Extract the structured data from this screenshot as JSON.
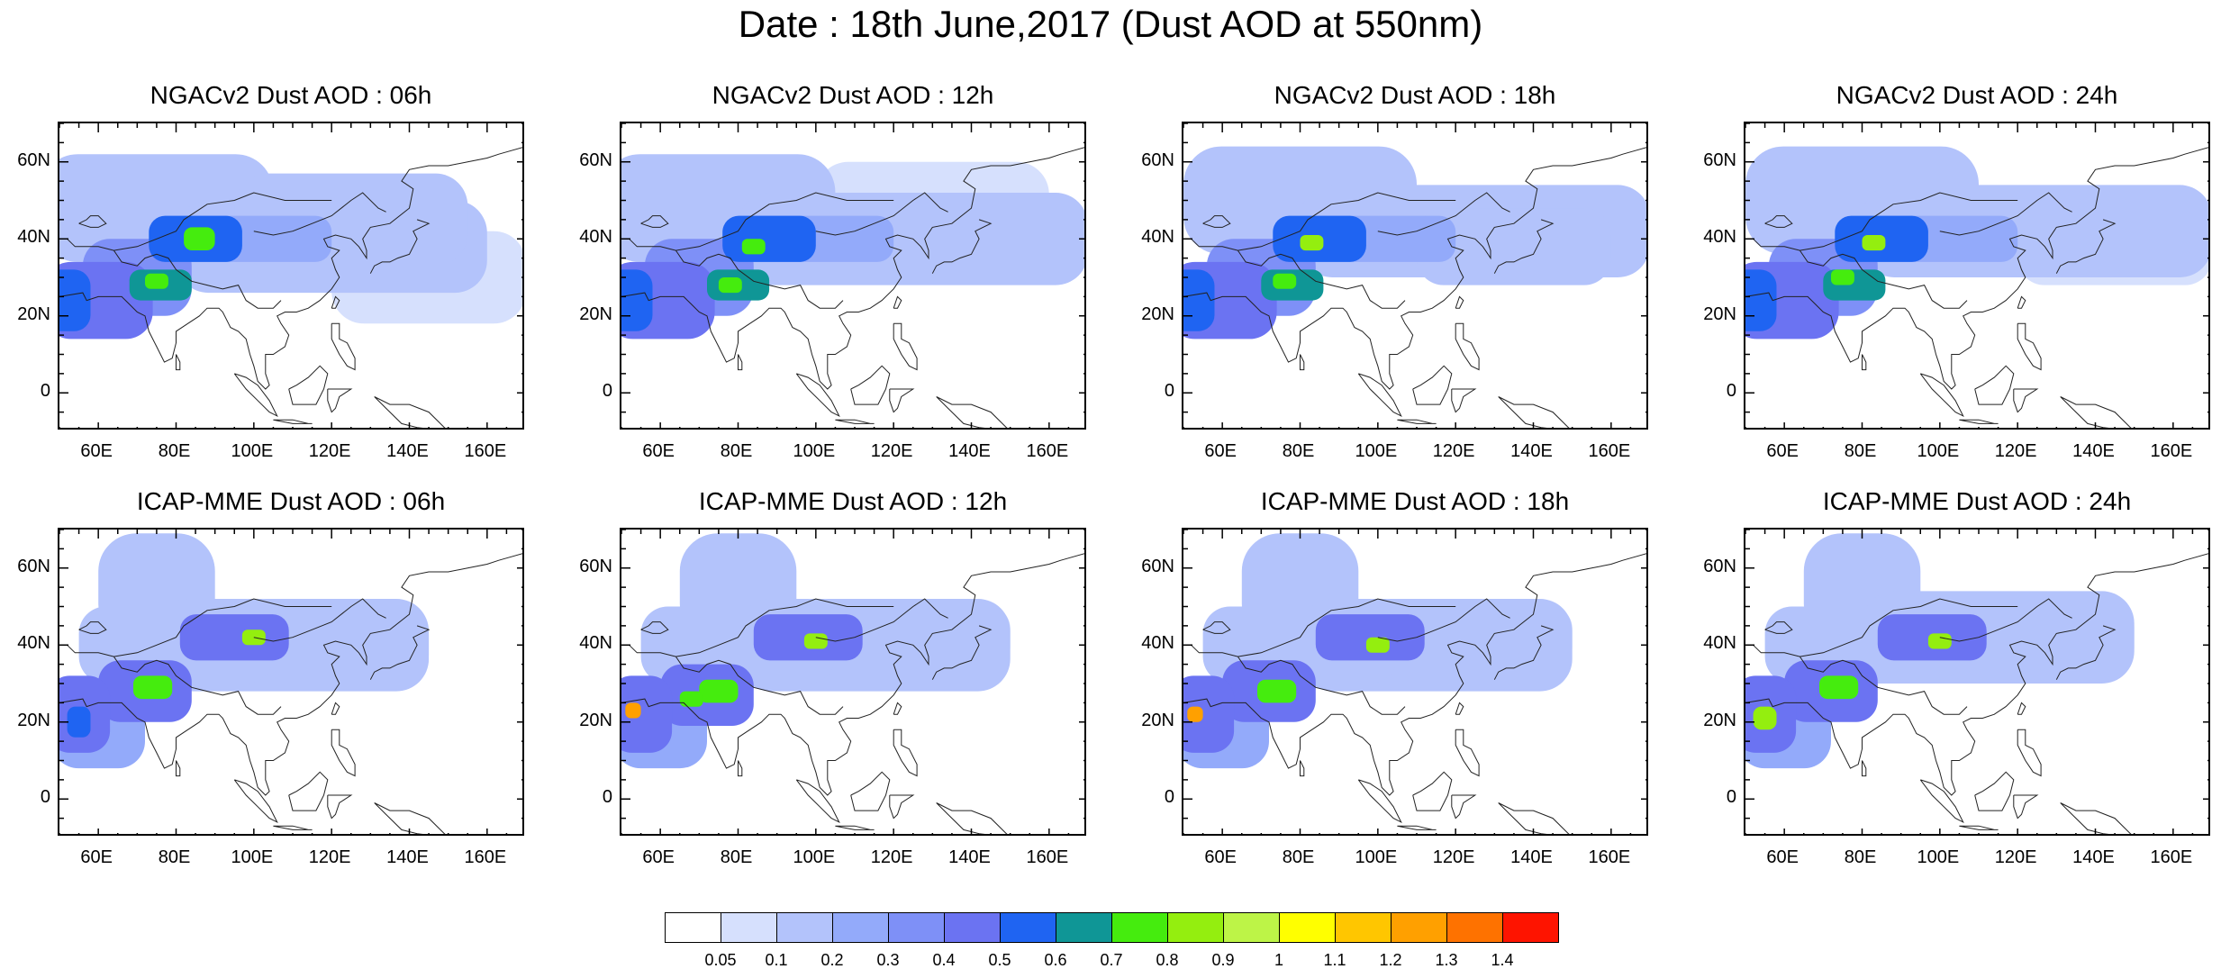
{
  "title": "Date : 18th June,2017 (Dust AOD at 550nm)",
  "axes": {
    "lon_range": [
      50,
      170
    ],
    "lat_range": [
      -10,
      70
    ],
    "x_ticks": [
      "60E",
      "80E",
      "100E",
      "120E",
      "140E",
      "160E"
    ],
    "x_tick_values": [
      60,
      80,
      100,
      120,
      140,
      160
    ],
    "y_ticks": [
      "60N",
      "40N",
      "20N",
      "0"
    ],
    "y_tick_values": [
      60,
      40,
      20,
      0
    ]
  },
  "panels": [
    {
      "title": "NGACv2 Dust AOD : 06h",
      "model": "NGACv2",
      "hour": "06h",
      "blobs": [
        [
          70,
          30,
          14,
          10,
          0.3
        ],
        [
          60,
          24,
          14,
          10,
          0.4
        ],
        [
          52,
          24,
          6,
          8,
          0.5
        ],
        [
          85,
          40,
          12,
          6,
          0.5
        ],
        [
          76,
          28,
          8,
          4,
          0.6
        ],
        [
          86,
          40,
          4,
          3,
          0.75
        ],
        [
          75,
          29,
          3,
          2,
          0.7
        ],
        [
          100,
          40,
          20,
          6,
          0.2
        ],
        [
          75,
          48,
          30,
          14,
          0.1
        ],
        [
          120,
          38,
          40,
          12,
          0.1
        ],
        [
          125,
          45,
          30,
          12,
          0.1
        ],
        [
          145,
          30,
          25,
          12,
          0.07
        ]
      ]
    },
    {
      "title": "NGACv2 Dust AOD : 12h",
      "model": "NGACv2",
      "hour": "12h",
      "blobs": [
        [
          70,
          30,
          14,
          10,
          0.3
        ],
        [
          60,
          24,
          14,
          10,
          0.4
        ],
        [
          52,
          24,
          6,
          8,
          0.5
        ],
        [
          88,
          40,
          12,
          6,
          0.5
        ],
        [
          80,
          28,
          8,
          4,
          0.6
        ],
        [
          84,
          38,
          3,
          2,
          0.75
        ],
        [
          78,
          28,
          3,
          2,
          0.7
        ],
        [
          100,
          40,
          20,
          6,
          0.2
        ],
        [
          75,
          48,
          30,
          14,
          0.1
        ],
        [
          125,
          40,
          45,
          12,
          0.1
        ],
        [
          130,
          48,
          30,
          12,
          0.08
        ]
      ]
    },
    {
      "title": "NGACv2 Dust AOD : 18h",
      "model": "NGACv2",
      "hour": "18h",
      "blobs": [
        [
          70,
          30,
          14,
          10,
          0.3
        ],
        [
          60,
          24,
          14,
          10,
          0.4
        ],
        [
          52,
          24,
          6,
          8,
          0.5
        ],
        [
          85,
          40,
          12,
          6,
          0.5
        ],
        [
          78,
          28,
          8,
          4,
          0.6
        ],
        [
          83,
          39,
          3,
          2,
          0.8
        ],
        [
          76,
          29,
          3,
          2,
          0.7
        ],
        [
          100,
          40,
          20,
          6,
          0.2
        ],
        [
          80,
          50,
          30,
          14,
          0.1
        ],
        [
          125,
          42,
          45,
          12,
          0.1
        ],
        [
          135,
          38,
          25,
          10,
          0.1
        ]
      ]
    },
    {
      "title": "NGACv2 Dust AOD : 24h",
      "model": "NGACv2",
      "hour": "24h",
      "blobs": [
        [
          70,
          30,
          14,
          10,
          0.3
        ],
        [
          60,
          24,
          14,
          10,
          0.4
        ],
        [
          52,
          24,
          6,
          8,
          0.5
        ],
        [
          85,
          40,
          12,
          6,
          0.5
        ],
        [
          78,
          28,
          8,
          4,
          0.6
        ],
        [
          83,
          39,
          3,
          2,
          0.8
        ],
        [
          75,
          30,
          3,
          2,
          0.7
        ],
        [
          100,
          40,
          20,
          6,
          0.2
        ],
        [
          80,
          50,
          30,
          14,
          0.1
        ],
        [
          125,
          42,
          45,
          12,
          0.1
        ],
        [
          145,
          38,
          25,
          10,
          0.08
        ]
      ]
    },
    {
      "title": "ICAP-MME Dust AOD : 06h",
      "model": "ICAP-MME",
      "hour": "06h",
      "blobs": [
        [
          72,
          28,
          12,
          8,
          0.4
        ],
        [
          55,
          22,
          8,
          10,
          0.4
        ],
        [
          95,
          42,
          14,
          6,
          0.45
        ],
        [
          74,
          29,
          5,
          3,
          0.7
        ],
        [
          100,
          42,
          3,
          2,
          0.8
        ],
        [
          55,
          20,
          3,
          4,
          0.5
        ],
        [
          80,
          40,
          25,
          10,
          0.15
        ],
        [
          75,
          55,
          15,
          14,
          0.1
        ],
        [
          110,
          40,
          35,
          12,
          0.1
        ],
        [
          130,
          40,
          15,
          8,
          0.08
        ],
        [
          60,
          18,
          12,
          10,
          0.2
        ]
      ]
    },
    {
      "title": "ICAP-MME Dust AOD : 12h",
      "model": "ICAP-MME",
      "hour": "12h",
      "blobs": [
        [
          72,
          27,
          12,
          8,
          0.4
        ],
        [
          55,
          22,
          8,
          10,
          0.4
        ],
        [
          98,
          42,
          14,
          6,
          0.45
        ],
        [
          75,
          28,
          5,
          3,
          0.7
        ],
        [
          100,
          41,
          3,
          2,
          0.8
        ],
        [
          53,
          23,
          2,
          2,
          1.2
        ],
        [
          68,
          26,
          3,
          2,
          0.7
        ],
        [
          80,
          40,
          25,
          10,
          0.15
        ],
        [
          80,
          55,
          15,
          14,
          0.1
        ],
        [
          115,
          40,
          35,
          12,
          0.1
        ],
        [
          135,
          42,
          15,
          8,
          0.08
        ],
        [
          60,
          18,
          12,
          10,
          0.2
        ]
      ]
    },
    {
      "title": "ICAP-MME Dust AOD : 18h",
      "model": "ICAP-MME",
      "hour": "18h",
      "blobs": [
        [
          72,
          28,
          12,
          8,
          0.4
        ],
        [
          55,
          22,
          8,
          10,
          0.4
        ],
        [
          98,
          42,
          14,
          6,
          0.45
        ],
        [
          74,
          28,
          5,
          3,
          0.7
        ],
        [
          100,
          40,
          3,
          2,
          0.8
        ],
        [
          53,
          22,
          2,
          2,
          1.2
        ],
        [
          80,
          40,
          25,
          10,
          0.15
        ],
        [
          80,
          55,
          15,
          14,
          0.1
        ],
        [
          115,
          40,
          35,
          12,
          0.1
        ],
        [
          135,
          42,
          15,
          8,
          0.08
        ],
        [
          60,
          18,
          12,
          10,
          0.2
        ]
      ]
    },
    {
      "title": "ICAP-MME Dust AOD : 24h",
      "model": "ICAP-MME",
      "hour": "24h",
      "blobs": [
        [
          72,
          28,
          12,
          8,
          0.4
        ],
        [
          55,
          22,
          8,
          10,
          0.4
        ],
        [
          98,
          42,
          14,
          6,
          0.45
        ],
        [
          74,
          29,
          5,
          3,
          0.7
        ],
        [
          100,
          41,
          3,
          2,
          0.8
        ],
        [
          55,
          21,
          3,
          3,
          0.85
        ],
        [
          80,
          40,
          25,
          10,
          0.15
        ],
        [
          80,
          55,
          15,
          14,
          0.1
        ],
        [
          115,
          42,
          35,
          12,
          0.1
        ],
        [
          135,
          42,
          15,
          8,
          0.08
        ],
        [
          60,
          18,
          12,
          10,
          0.2
        ]
      ]
    }
  ],
  "colorbar": {
    "colors": [
      "#ffffff",
      "#d6e0fd",
      "#b3c3fb",
      "#93aafa",
      "#7e90f7",
      "#6b73f2",
      "#1f64f2",
      "#0f9696",
      "#45ec0e",
      "#94ee0f",
      "#bdf447",
      "#ffff00",
      "#ffc600",
      "#ffa000",
      "#fe7200",
      "#fe1400"
    ],
    "labels": [
      "0.05",
      "0.1",
      "0.2",
      "0.3",
      "0.4",
      "0.5",
      "0.6",
      "0.7",
      "0.8",
      "0.9",
      "1",
      "1.1",
      "1.2",
      "1.3",
      "1.4"
    ],
    "levels": [
      0.05,
      0.1,
      0.2,
      0.3,
      0.4,
      0.5,
      0.6,
      0.7,
      0.8,
      0.9,
      1,
      1.1,
      1.2,
      1.3,
      1.4
    ]
  }
}
